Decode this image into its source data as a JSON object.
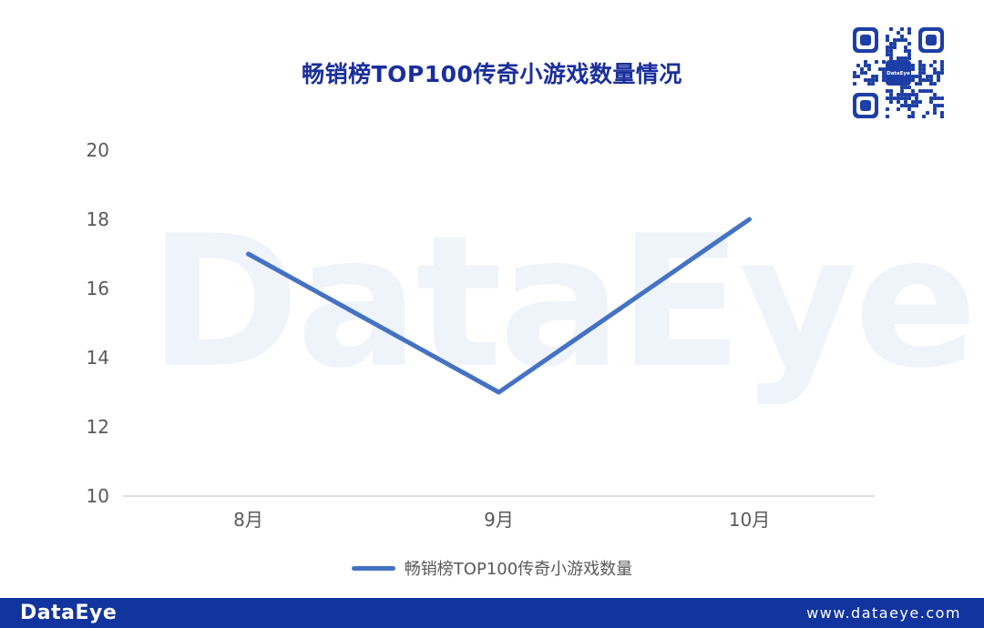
{
  "title": "畅销榜TOP100传奇小游戏数量情况",
  "watermark_text": "DataEye",
  "qr": {
    "icon": "qr-code",
    "center_label": "DataEye"
  },
  "legend": {
    "label": "畅销榜TOP100传奇小游戏数量"
  },
  "footer": {
    "logo": "DataEye",
    "url": "www.dataeye.com"
  },
  "colors": {
    "title_text": "#1A2F9C",
    "line": "#4472C4",
    "axis_line": "#D6D6D6",
    "tick_text": "#595959",
    "legend_text": "#595959",
    "watermark": "#EFF3FA",
    "footer_bg": "#12349E",
    "footer_text": "#FFFFFF",
    "qr_blue": "#1D3FA5"
  },
  "chart_data": {
    "type": "line",
    "categories": [
      "8月",
      "9月",
      "10月"
    ],
    "series": [
      {
        "name": "畅销榜TOP100传奇小游戏数量",
        "values": [
          17,
          13,
          18
        ]
      }
    ],
    "title": "畅销榜TOP100传奇小游戏数量情况",
    "xlabel": "",
    "ylabel": "",
    "ylim": [
      10,
      20
    ],
    "yticks": [
      10,
      12,
      14,
      16,
      18,
      20
    ],
    "grid": false,
    "legend_position": "bottom"
  }
}
